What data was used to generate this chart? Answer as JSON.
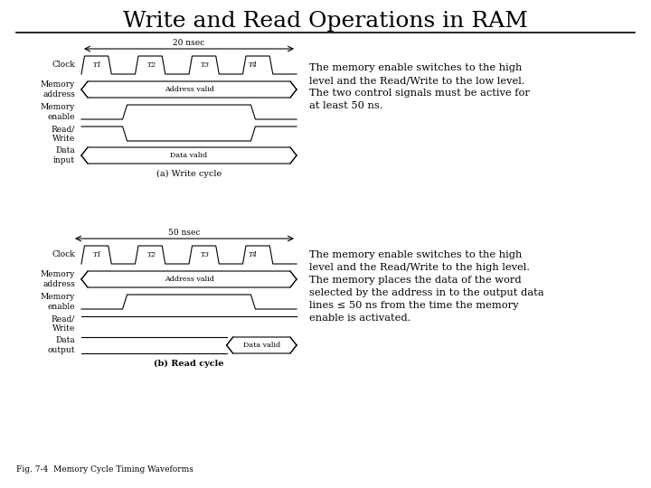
{
  "title": "Write and Read Operations in RAM",
  "title_fontsize": 18,
  "bg_color": "#ffffff",
  "write_text": "The memory enable switches to the high\nlevel and the Read/Write to the low level.\nThe two control signals must be active for\nat least 50 ns.",
  "read_text": "The memory enable switches to the high\nlevel and the Read/Write to the high level.\nThe memory places the data of the word\nselected by the address in to the output data\nlines ≤ 50 ns from the time the memory\nenable is activated.",
  "caption": "Fig. 7-4  Memory Cycle Timing Waveforms",
  "write_cycle_label": "(a) Write cycle",
  "read_cycle_label": "(b) Read cycle",
  "write_nsec": "20 nsec",
  "read_nsec": "50 nsec",
  "signal_names_write": [
    "Clock",
    "Memory\naddress",
    "Memory\nenable",
    "Read/\nWrite",
    "Data\ninput"
  ],
  "signal_names_read": [
    "Clock",
    "Memory\naddress",
    "Memory\nenable",
    "Read/\nWrite",
    "Data\noutput"
  ],
  "clock_labels": [
    "T1",
    "T2",
    "T3",
    "T4"
  ],
  "line_color": "#000000",
  "text_color": "#000000",
  "sig_label_fontsize": 6.5,
  "inner_label_fontsize": 5.8,
  "cycle_label_fontsize": 7,
  "caption_fontsize": 6.5,
  "text_block_fontsize": 8.2,
  "nsec_fontsize": 6.5
}
